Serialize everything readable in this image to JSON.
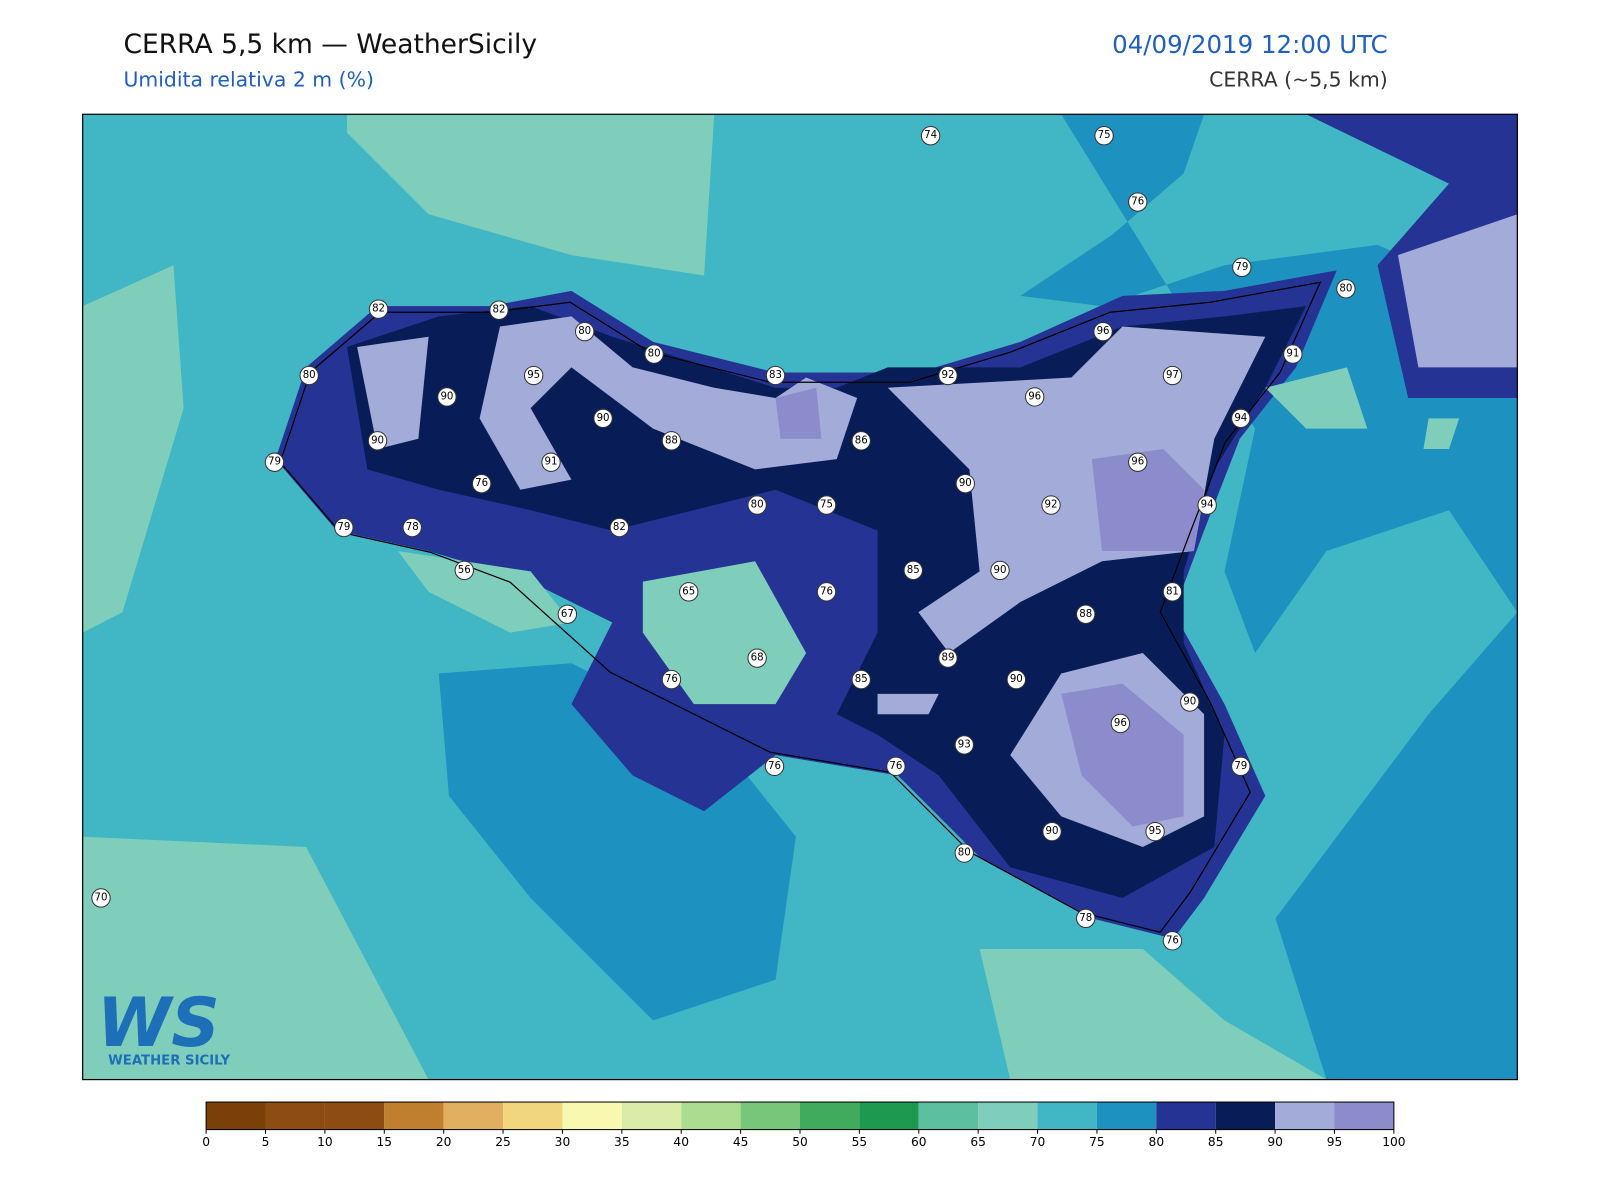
{
  "header": {
    "title": "CERRA 5,5 km — WeatherSicily",
    "subtitle": "Umidita relativa 2 m (%)",
    "datetime": "04/09/2019 12:00 UTC",
    "model": "CERRA (~5,5 km)"
  },
  "logo": {
    "mark": "WS",
    "text": "WEATHER SICILY"
  },
  "stations": [
    74,
    75,
    76,
    79,
    80,
    82,
    82,
    80,
    80,
    96,
    80,
    95,
    83,
    92,
    97,
    91,
    90,
    96,
    90,
    94,
    90,
    88,
    86,
    79,
    91,
    96,
    76,
    90,
    80,
    75,
    92,
    94,
    79,
    78,
    82,
    56,
    85,
    90,
    65,
    76,
    81,
    67,
    88,
    68,
    89,
    76,
    85,
    90,
    90,
    96,
    93,
    76,
    76,
    79,
    90,
    95,
    80,
    70,
    78,
    76
  ],
  "colorbar": {
    "ticks": [
      0,
      5,
      10,
      15,
      20,
      25,
      30,
      35,
      40,
      45,
      50,
      55,
      60,
      65,
      70,
      75,
      80,
      85,
      90,
      95,
      100
    ],
    "colors": [
      "#7b4009",
      "#8c4c12",
      "#8c4c12",
      "#c07f2e",
      "#e0b060",
      "#f2d67d",
      "#f8f8b0",
      "#dbeca8",
      "#acdc8f",
      "#78c679",
      "#41ab5d",
      "#1d9a50",
      "#5cc0a0",
      "#7fcdbb",
      "#41b6c4",
      "#1d91c0",
      "#253494",
      "#081d58",
      "#a3acd9",
      "#8c8ccc"
    ]
  }
}
